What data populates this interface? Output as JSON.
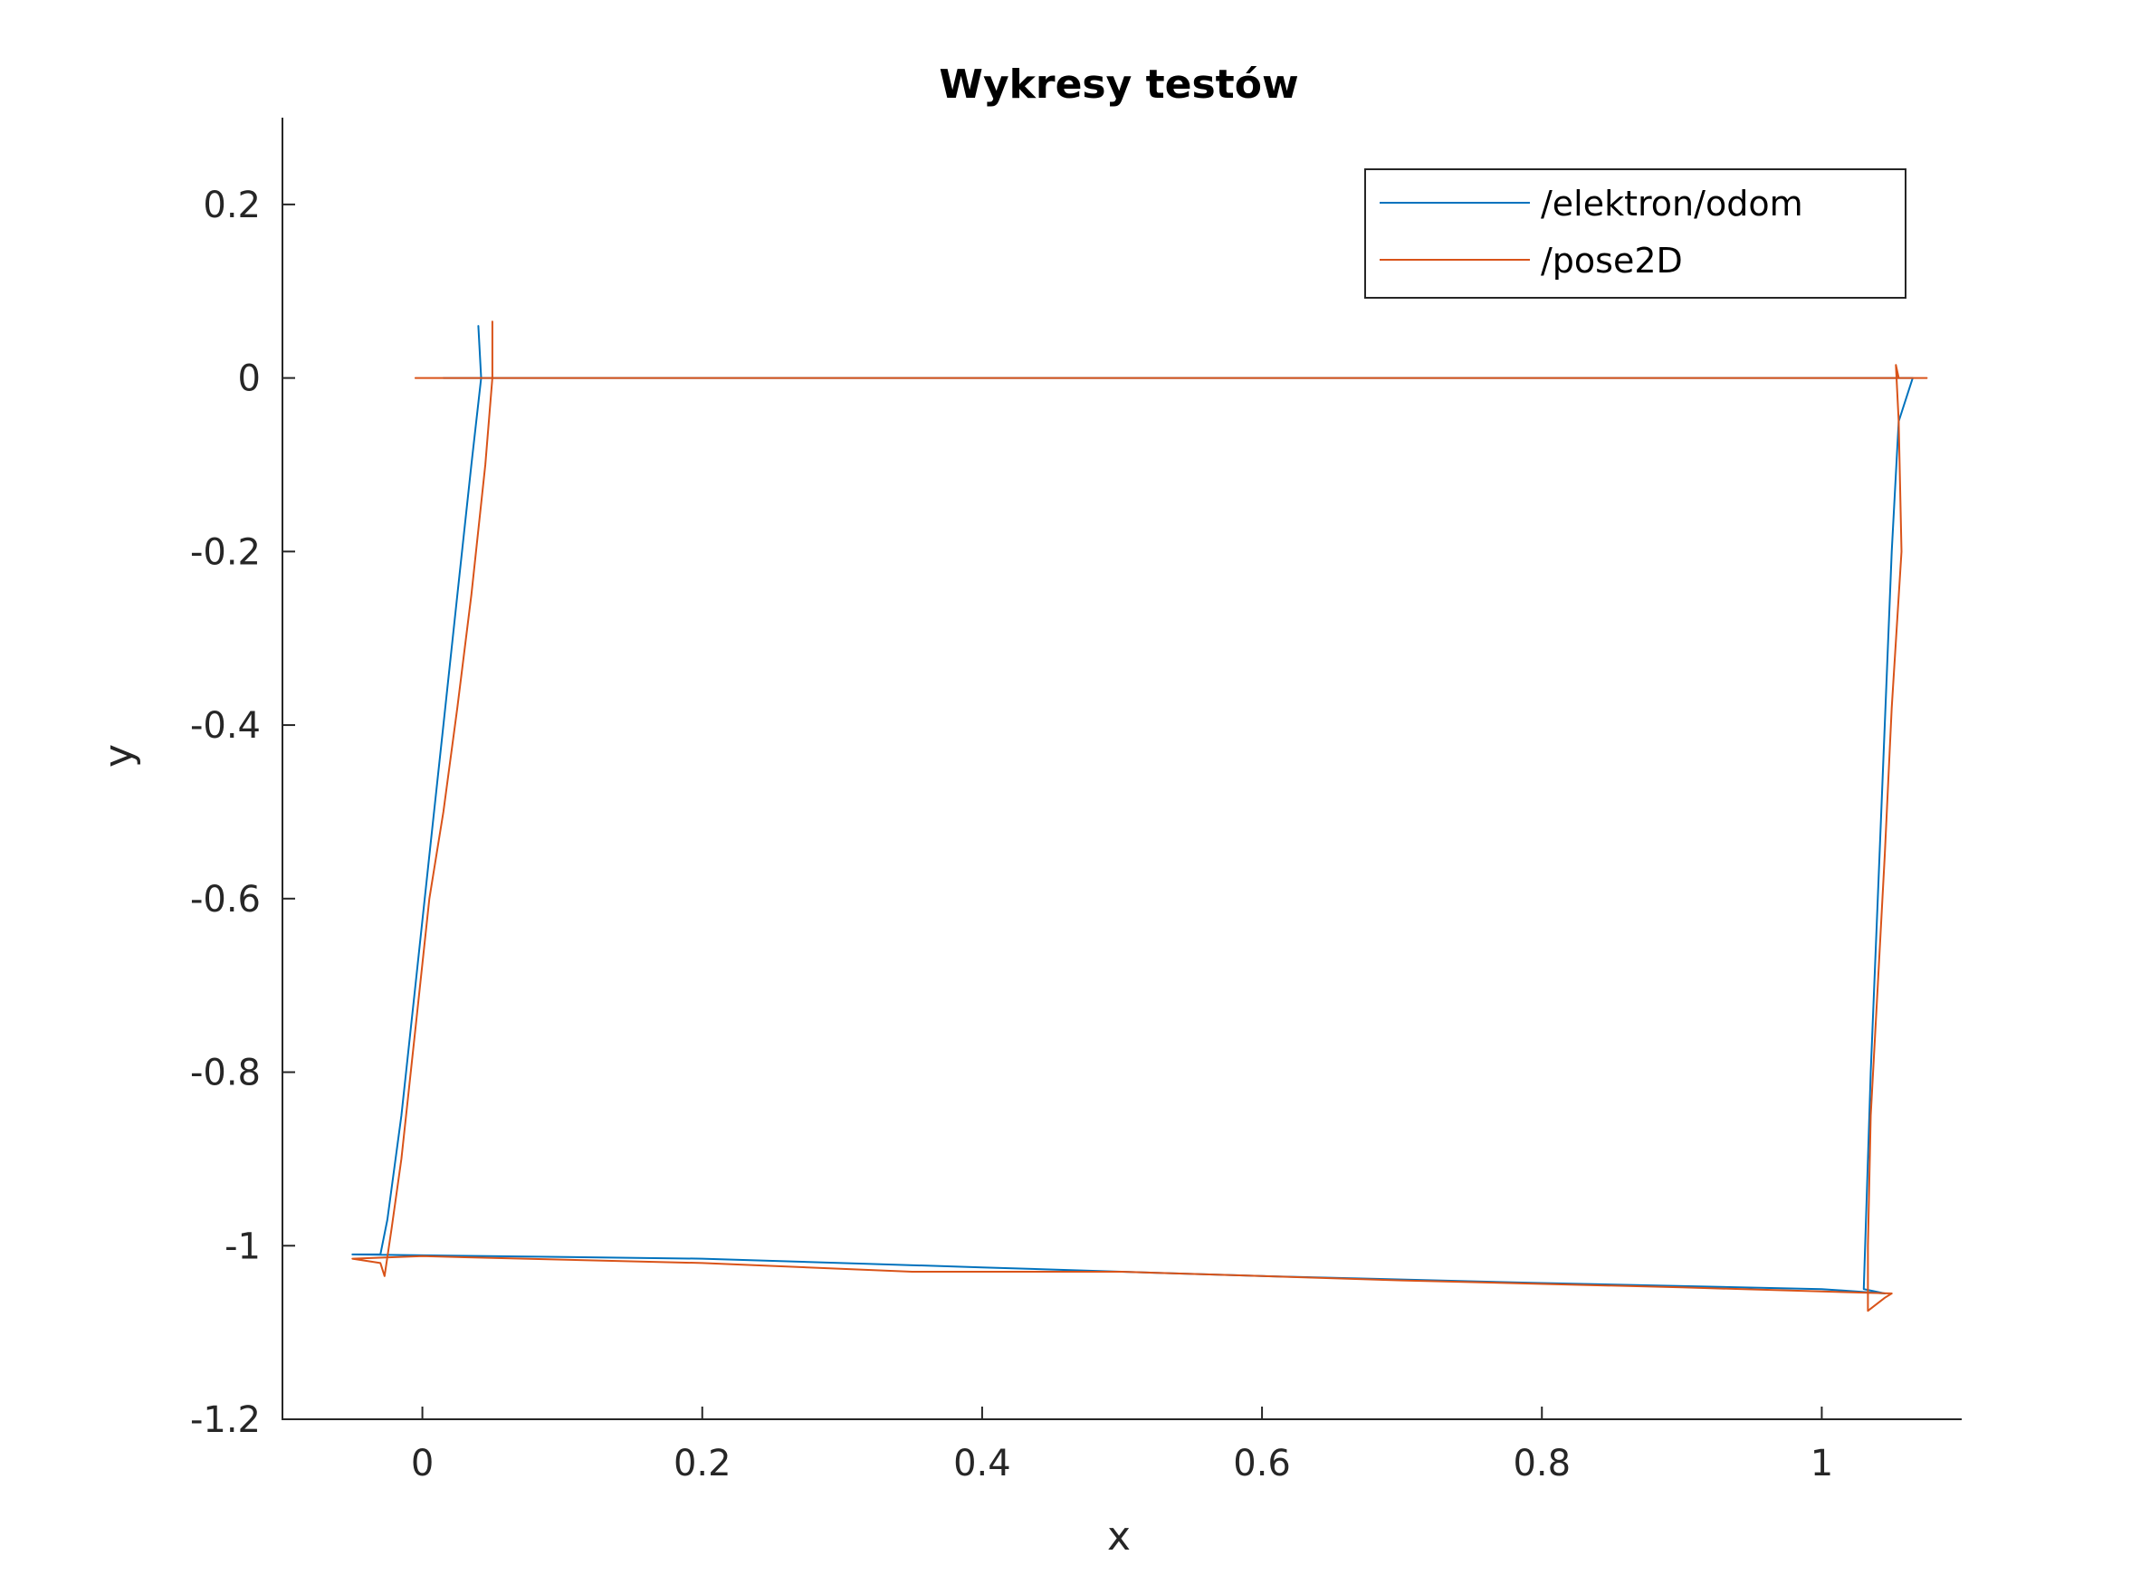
{
  "chart_data": {
    "type": "line",
    "title": "Wykresy testów",
    "xlabel": "x",
    "ylabel": "y",
    "xlim": [
      -0.1,
      1.1
    ],
    "ylim": [
      -1.2,
      0.3
    ],
    "xticks": [
      0,
      0.2,
      0.4,
      0.6,
      0.8,
      1
    ],
    "xtick_labels": [
      "0",
      "0.2",
      "0.4",
      "0.6",
      "0.8",
      "1"
    ],
    "yticks": [
      0.2,
      0,
      -0.2,
      -0.4,
      -0.6,
      -0.8,
      -1,
      -1.2
    ],
    "ytick_labels": [
      "0.2",
      "0",
      "-0.2",
      "-0.4",
      "-0.6",
      "-0.8",
      "-1",
      "-1.2"
    ],
    "grid": false,
    "legend_position": "top-right",
    "series": [
      {
        "name": "/elektron/odom",
        "color": "#0072BD",
        "points": [
          [
            0.04,
            0.06
          ],
          [
            0.042,
            0.0
          ],
          [
            0.035,
            -0.1
          ],
          [
            0.025,
            -0.25
          ],
          [
            0.015,
            -0.4
          ],
          [
            0.005,
            -0.55
          ],
          [
            -0.005,
            -0.7
          ],
          [
            -0.015,
            -0.85
          ],
          [
            -0.025,
            -0.97
          ],
          [
            -0.03,
            -1.01
          ],
          [
            -0.05,
            -1.01
          ],
          [
            0.2,
            -1.015
          ],
          [
            0.4,
            -1.025
          ],
          [
            0.6,
            -1.035
          ],
          [
            0.8,
            -1.043
          ],
          [
            1.0,
            -1.05
          ],
          [
            1.045,
            -1.055
          ],
          [
            1.03,
            -1.05
          ],
          [
            1.035,
            -0.8
          ],
          [
            1.04,
            -0.6
          ],
          [
            1.045,
            -0.4
          ],
          [
            1.05,
            -0.2
          ],
          [
            1.055,
            -0.05
          ],
          [
            1.065,
            0.0
          ],
          [
            0.6,
            0.0
          ],
          [
            0.3,
            0.0
          ],
          [
            0.1,
            0.0
          ],
          [
            0.015,
            0.0
          ]
        ]
      },
      {
        "name": "/pose2D",
        "color": "#D95319",
        "points": [
          [
            -0.005,
            0.0
          ],
          [
            0.1,
            0.0
          ],
          [
            0.3,
            0.0
          ],
          [
            0.6,
            0.0
          ],
          [
            0.9,
            0.0
          ],
          [
            1.05,
            0.0
          ],
          [
            1.075,
            0.0
          ],
          [
            1.055,
            0.0
          ],
          [
            1.053,
            0.015
          ],
          [
            1.055,
            -0.05
          ],
          [
            1.057,
            -0.2
          ],
          [
            1.05,
            -0.38
          ],
          [
            1.045,
            -0.55
          ],
          [
            1.04,
            -0.7
          ],
          [
            1.035,
            -0.85
          ],
          [
            1.033,
            -1.0
          ],
          [
            1.033,
            -1.075
          ],
          [
            1.045,
            -1.06
          ],
          [
            1.05,
            -1.055
          ],
          [
            0.9,
            -1.048
          ],
          [
            0.7,
            -1.04
          ],
          [
            0.5,
            -1.03
          ],
          [
            0.35,
            -1.03
          ],
          [
            0.2,
            -1.02
          ],
          [
            0.0,
            -1.012
          ],
          [
            -0.05,
            -1.015
          ],
          [
            -0.03,
            -1.02
          ],
          [
            -0.027,
            -1.035
          ],
          [
            -0.022,
            -0.98
          ],
          [
            -0.015,
            -0.9
          ],
          [
            -0.005,
            -0.75
          ],
          [
            0.005,
            -0.6
          ],
          [
            0.015,
            -0.5
          ],
          [
            0.025,
            -0.38
          ],
          [
            0.035,
            -0.25
          ],
          [
            0.045,
            -0.1
          ],
          [
            0.05,
            0.0
          ],
          [
            0.05,
            0.065
          ]
        ]
      }
    ]
  }
}
